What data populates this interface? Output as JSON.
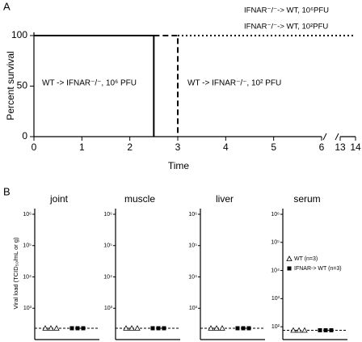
{
  "chart_data": [
    {
      "type": "line",
      "panel_label": "A",
      "xlabel": "Time",
      "ylabel": "Percent survival",
      "xlim": [
        0,
        14
      ],
      "xbreak": [
        6,
        13
      ],
      "xticks": [
        0,
        1,
        2,
        3,
        4,
        5,
        6,
        13,
        14
      ],
      "ylim": [
        0,
        100
      ],
      "yticks": [
        0,
        50,
        100
      ],
      "series": [
        {
          "name": "WT -> IFNAR⁻/⁻, 10⁶ PFU",
          "color": "#000000",
          "style": "solid",
          "x": [
            0,
            2.5,
            2.5
          ],
          "values": [
            100,
            100,
            0
          ]
        },
        {
          "name": "WT -> IFNAR⁻/⁻, 10² PFU",
          "color": "#000000",
          "style": "dashed",
          "x": [
            2.5,
            3,
            3
          ],
          "values": [
            100,
            100,
            0
          ]
        },
        {
          "name": "IFNAR⁻/⁻-> WT, 10⁶PFU",
          "color": "#000000",
          "style": "dotted",
          "x": [
            3,
            14
          ],
          "values": [
            100,
            100
          ]
        },
        {
          "name": "IFNAR⁻/⁻-> WT, 10²PFU",
          "color": "#000000",
          "style": "dotted",
          "x": [
            3,
            14
          ],
          "values": [
            100,
            100
          ]
        }
      ]
    },
    {
      "type": "dot",
      "panel_label": "B",
      "title": "joint",
      "ylabel": "Viral load (TCID₅₀/mL or g)",
      "yscale": "log",
      "ylim": [
        100,
        1000000
      ],
      "yticks": [
        {
          "value": 1000,
          "label": "10³"
        },
        {
          "value": 10000,
          "label": "10⁴"
        },
        {
          "value": 100000,
          "label": "10⁵"
        },
        {
          "value": 1000000,
          "label": "10⁶"
        }
      ],
      "reference_line": 230,
      "series": [
        {
          "marker": "triangle-open",
          "color": "#000000",
          "values": [
            230,
            230,
            230
          ]
        },
        {
          "marker": "square",
          "color": "#000000",
          "values": [
            230,
            230,
            230
          ]
        }
      ]
    },
    {
      "type": "dot",
      "title": "muscle",
      "yscale": "log",
      "ylim": [
        100,
        1000000
      ],
      "yticks": [
        {
          "value": 1000,
          "label": "10³"
        },
        {
          "value": 10000,
          "label": "10⁴"
        },
        {
          "value": 100000,
          "label": "10⁵"
        },
        {
          "value": 1000000,
          "label": "10⁶"
        }
      ],
      "reference_line": 230,
      "series": [
        {
          "marker": "triangle-open",
          "color": "#000000",
          "values": [
            230,
            230,
            230
          ]
        },
        {
          "marker": "square",
          "color": "#000000",
          "values": [
            230,
            230,
            230
          ]
        }
      ]
    },
    {
      "type": "dot",
      "title": "liver",
      "yscale": "log",
      "ylim": [
        100,
        1000000
      ],
      "yticks": [
        {
          "value": 1000,
          "label": "10³"
        },
        {
          "value": 10000,
          "label": "10⁴"
        },
        {
          "value": 100000,
          "label": "10⁵"
        },
        {
          "value": 1000000,
          "label": "10⁶"
        }
      ],
      "reference_line": 230,
      "series": [
        {
          "marker": "triangle-open",
          "color": "#000000",
          "values": [
            230,
            230,
            230
          ]
        },
        {
          "marker": "square",
          "color": "#000000",
          "values": [
            230,
            230,
            230
          ]
        }
      ]
    },
    {
      "type": "dot",
      "title": "serum",
      "yscale": "log",
      "ylim": [
        35,
        1000000
      ],
      "legend": "upper left",
      "yticks": [
        {
          "value": 100,
          "label": "10²"
        },
        {
          "value": 1000,
          "label": "10³"
        },
        {
          "value": 10000,
          "label": "10⁴"
        },
        {
          "value": 100000,
          "label": "10⁵"
        },
        {
          "value": 1000000,
          "label": "10⁶"
        }
      ],
      "reference_line": 75,
      "series": [
        {
          "name": "WT (n=3)",
          "marker": "triangle-open",
          "color": "#000000",
          "values": [
            75,
            75,
            75
          ]
        },
        {
          "name": "IFNAR-> WT (n=3)",
          "marker": "square",
          "color": "#000000",
          "values": [
            75,
            75,
            75
          ]
        }
      ]
    }
  ]
}
